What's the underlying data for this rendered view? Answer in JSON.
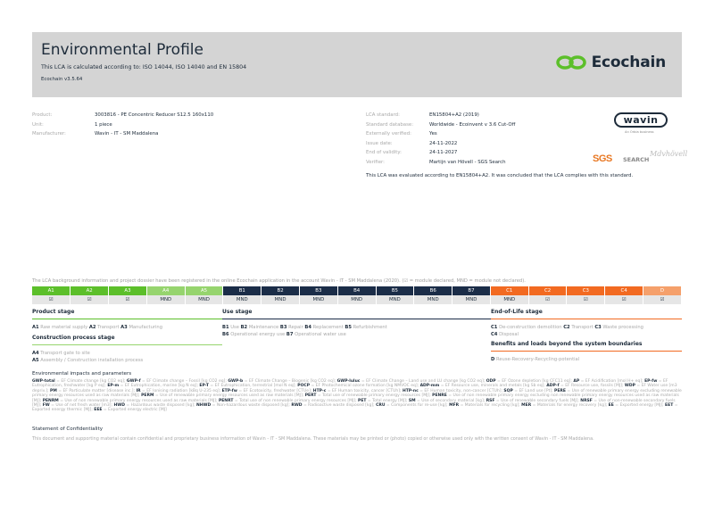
{
  "header": {
    "title": "Environmental Profile",
    "subtitle": "This LCA is calculated according to: ISO 14044, ISO 14040 and EN 15804",
    "version": "Ecochain v3.5.64",
    "logo_text": "Ecochain",
    "logo_color": "#5cbf2a"
  },
  "product_info": [
    {
      "label": "Product:",
      "value": "3003816 - PE Concentric Reducer S12.5 160x110"
    },
    {
      "label": "Unit:",
      "value": "1 piece"
    },
    {
      "label": "Manufacturer:",
      "value": "Wavin - IT - SM Maddalena"
    }
  ],
  "lca_info": [
    {
      "label": "LCA standard:",
      "value": "EN15804+A2 (2019)"
    },
    {
      "label": "Standard database:",
      "value": "Worldwide - Ecoinvent v 3.6 Cut-Off"
    },
    {
      "label": "Externally verified:",
      "value": "Yes"
    },
    {
      "label": "Issue date:",
      "value": "24-11-2022"
    },
    {
      "label": "End of validity:",
      "value": "24-11-2027"
    },
    {
      "label": "Verifier:",
      "value": "Martijn van Hövell - SGS Search"
    }
  ],
  "conclusion": "This LCA was evaluated according to EN15804+A2. It was concluded that the LCA complies with this standard.",
  "logos": {
    "wavin": "wavin",
    "wavin_sub": "An Orbia business",
    "sgs": "SGS",
    "search": "SEARCH"
  },
  "note": "The LCA background information and project dossier have been registered in the online Ecochain application in the account Wavin - IT - SM Maddalena (2020). (☑ = module declared, MND = module not declared).",
  "modules": [
    {
      "code": "A1",
      "status": "☑",
      "color": "#5cbf2a"
    },
    {
      "code": "A2",
      "status": "☑",
      "color": "#5cbf2a"
    },
    {
      "code": "A3",
      "status": "☑",
      "color": "#5cbf2a"
    },
    {
      "code": "A4",
      "status": "MND",
      "color": "#96d46e"
    },
    {
      "code": "A5",
      "status": "MND",
      "color": "#96d46e"
    },
    {
      "code": "B1",
      "status": "MND",
      "color": "#1b2d48"
    },
    {
      "code": "B2",
      "status": "MND",
      "color": "#1b2d48"
    },
    {
      "code": "B3",
      "status": "MND",
      "color": "#1b2d48"
    },
    {
      "code": "B4",
      "status": "MND",
      "color": "#1b2d48"
    },
    {
      "code": "B5",
      "status": "MND",
      "color": "#1b2d48"
    },
    {
      "code": "B6",
      "status": "MND",
      "color": "#1b2d48"
    },
    {
      "code": "B7",
      "status": "MND",
      "color": "#1b2d48"
    },
    {
      "code": "C1",
      "status": "MND",
      "color": "#f26a21"
    },
    {
      "code": "C2",
      "status": "☑",
      "color": "#f26a21"
    },
    {
      "code": "C3",
      "status": "☑",
      "color": "#f26a21"
    },
    {
      "code": "C4",
      "status": "☑",
      "color": "#f26a21"
    },
    {
      "code": "D",
      "status": "☑",
      "color": "#f5a06b"
    }
  ],
  "stages": {
    "product": {
      "title": "Product stage",
      "items": [
        [
          "A1",
          "Raw material supply"
        ],
        [
          "A2",
          "Transport"
        ],
        [
          "A3",
          "Manufacturing"
        ]
      ]
    },
    "construction": {
      "title": "Construction process stage",
      "items": [
        [
          "A4",
          "Transport gate to site"
        ],
        [
          "A5",
          "Assembly / Construction installation process"
        ]
      ]
    },
    "use": {
      "title": "Use stage",
      "items": [
        [
          "B1",
          "Use"
        ],
        [
          "B2",
          "Maintenance"
        ],
        [
          "B3",
          "Repair"
        ],
        [
          "B4",
          "Replacement"
        ],
        [
          "B5",
          "Refurbishment"
        ],
        [
          "B6",
          "Operational energy use"
        ],
        [
          "B7",
          "Operational water use"
        ]
      ]
    },
    "eol": {
      "title": "End-of-Life stage",
      "items": [
        [
          "C1",
          "De-construction demolition"
        ],
        [
          "C2",
          "Transport"
        ],
        [
          "C3",
          "Waste processing"
        ],
        [
          "C4",
          "Disposal"
        ]
      ]
    },
    "beyond": {
      "title": "Benefits and loads beyond the system boundaries",
      "items": [
        [
          "D",
          "Reuse-Recovery-Recycling-potential"
        ]
      ]
    }
  },
  "abbreviations_title": "Environmental impacts and parameters",
  "abbreviations": [
    [
      "GWP-total",
      "EF Climate change [kg CO2 eq]"
    ],
    [
      "GWP-f",
      "EF Climate change – Fossil [kg CO2 eq]"
    ],
    [
      "GWP-b",
      "EF Climate Change – Biogenic [kg CO2 eq]"
    ],
    [
      "GWP-luluc",
      "EF Climate Change – Land use and LU change [kg CO2 eq]"
    ],
    [
      "ODP",
      "EF Ozone depletion [kg CFC11 eq]"
    ],
    [
      "AP",
      "EF Acidification [mol H+ eq]"
    ],
    [
      "EP-fw",
      "EF Eutrophication, freshwater [kg P eq]"
    ],
    [
      "EP-m",
      "EF Eutrophication, marine [kg N eq]"
    ],
    [
      "EP-T",
      "EF Eutrophication, terrestrial [mol N eq]"
    ],
    [
      "POCP",
      "EF Photochemical ozone formation [kg NMVOC eq]"
    ],
    [
      "ADP-mm",
      "EF Resource use, minerals and metals [kg Sb eq]"
    ],
    [
      "ADP-f",
      "EF Resource use, fossils [MJ]"
    ],
    [
      "WDP",
      "EF Water use [m3 depriv.]"
    ],
    [
      "PM",
      "EF Particulate matter [disease inc.]"
    ],
    [
      "IR",
      "EF Ionising radiation [kBq U-235 eq]"
    ],
    [
      "ETP-fw",
      "EF Ecotoxicity, freshwater [CTUe]"
    ],
    [
      "HTP-c",
      "EF Human toxicity, cancer [CTUh]"
    ],
    [
      "HTP-nc",
      "EF Human toxicity, non-cancer [CTUh]"
    ],
    [
      "SQP",
      "EF Land use [Pt]"
    ],
    [
      "PERE",
      "Use of renewable primary energy excluding renewable primary energy resources used as raw materials [MJ]"
    ],
    [
      "PERM",
      "Use of renewable primary energy resources used as raw materials [MJ]"
    ],
    [
      "PERT",
      "Total use of renewable primary energy resources [MJ]"
    ],
    [
      "PENRE",
      "Use of non renewable primary energy excluding non renewable primary energy resources used as raw materials [MJ]"
    ],
    [
      "PENRM",
      "Use of non renewable primary energy resources used as raw materials [MJ]"
    ],
    [
      "PENRT",
      "Total use of non renewable primary energy resources [MJ]"
    ],
    [
      "PET",
      "Total energy [MJ]"
    ],
    [
      "SM",
      "Use of secondary material [kg]"
    ],
    [
      "RSF",
      "Use of renewable secondary fuels [MJ]"
    ],
    [
      "NRSF",
      "Use of non-renewable secondary fuels [MJ]"
    ],
    [
      "FW",
      "Use of net fresh water [m3]"
    ],
    [
      "HWD",
      "Hazardous waste disposed [kg]"
    ],
    [
      "NHWD",
      "Non-hazardous waste disposed [kg]"
    ],
    [
      "RWD",
      "Radioactive waste disposed [kg]"
    ],
    [
      "CRU",
      "Components for re-use [kg]"
    ],
    [
      "MFR",
      "Materials for recycling [kg]"
    ],
    [
      "MER",
      "Materials for energy recovery [kg]"
    ],
    [
      "EE",
      "Exported energy [MJ]"
    ],
    [
      "EET",
      "Exported energy thermic [MJ]"
    ],
    [
      "EEE",
      "Exported energy electric [MJ]"
    ]
  ],
  "confidentiality": {
    "title": "Statement of Confidentiality",
    "text": "This document and supporting material contain confidential and proprietary business information of Wavin - IT - SM Maddalena. These materials may be printed or (photo) copied or otherwise used only with the written consent of Wavin - IT - SM Maddalena."
  }
}
